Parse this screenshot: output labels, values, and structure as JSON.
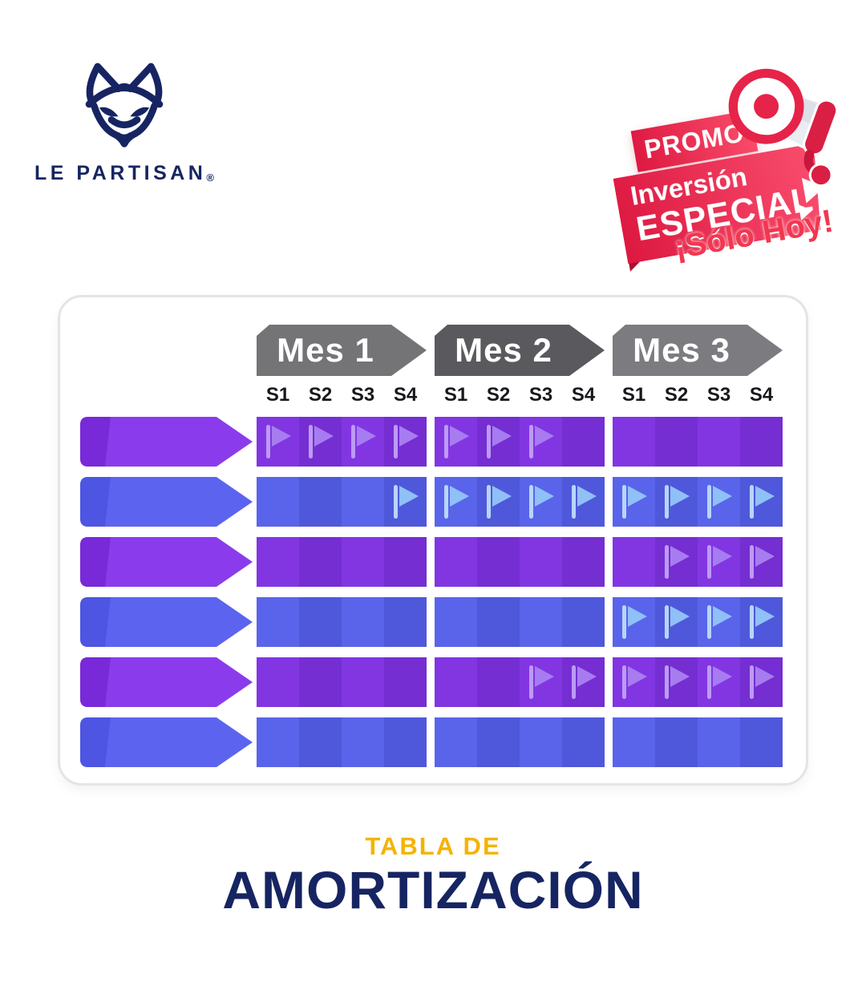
{
  "brand": {
    "name": "LE PARTISAN",
    "registered": "®"
  },
  "promo": {
    "banner_top": "PROMO",
    "line1": "Inversión",
    "line2": "ESPECIAL",
    "tagline": "¡Sólo Hoy!"
  },
  "table": {
    "months": [
      {
        "label": "Mes 1",
        "color": "#747477"
      },
      {
        "label": "Mes 2",
        "color": "#5A5A5E"
      },
      {
        "label": "Mes 3",
        "color": "#7C7C80"
      }
    ],
    "weeks": [
      "S1",
      "S2",
      "S3",
      "S4"
    ],
    "rows": [
      {
        "color": "purple",
        "flags": [
          [
            1,
            1,
            1,
            1
          ],
          [
            1,
            1,
            1,
            0
          ],
          [
            0,
            0,
            0,
            0
          ]
        ]
      },
      {
        "color": "blue",
        "flags": [
          [
            0,
            0,
            0,
            1
          ],
          [
            1,
            1,
            1,
            1
          ],
          [
            1,
            1,
            1,
            1
          ]
        ]
      },
      {
        "color": "purple",
        "flags": [
          [
            0,
            0,
            0,
            0
          ],
          [
            0,
            0,
            0,
            0
          ],
          [
            0,
            1,
            1,
            1
          ]
        ]
      },
      {
        "color": "blue",
        "flags": [
          [
            0,
            0,
            0,
            0
          ],
          [
            0,
            0,
            0,
            0
          ],
          [
            1,
            1,
            1,
            1
          ]
        ]
      },
      {
        "color": "purple",
        "flags": [
          [
            0,
            0,
            0,
            0
          ],
          [
            0,
            0,
            1,
            1
          ],
          [
            1,
            1,
            1,
            1
          ]
        ]
      },
      {
        "color": "blue",
        "flags": [
          [
            0,
            0,
            0,
            0
          ],
          [
            0,
            0,
            0,
            0
          ],
          [
            0,
            0,
            0,
            0
          ]
        ]
      }
    ]
  },
  "footer": {
    "subtitle": "TABLA DE",
    "title": "AMORTIZACIÓN"
  },
  "colors": {
    "navy": "#162562",
    "gold": "#F5B301",
    "promo_red": "#E82049",
    "promo_red_light": "#F94E6E",
    "promo_fold_dark": "#A8122F",
    "solo_hoy_red": "#F23750",
    "purple": {
      "label": "#8A3CEC",
      "front": "#7829D8",
      "cell_a": "#8136E2",
      "cell_b": "#752ED1",
      "flag": "#A77CF0",
      "pole": "#BD9AF6"
    },
    "blue": {
      "label": "#5C64EF",
      "front": "#4D55E2",
      "cell_a": "#5964EA",
      "cell_b": "#4F58DA",
      "flag": "#8FC0F7",
      "pole": "#B7D6FA"
    }
  }
}
